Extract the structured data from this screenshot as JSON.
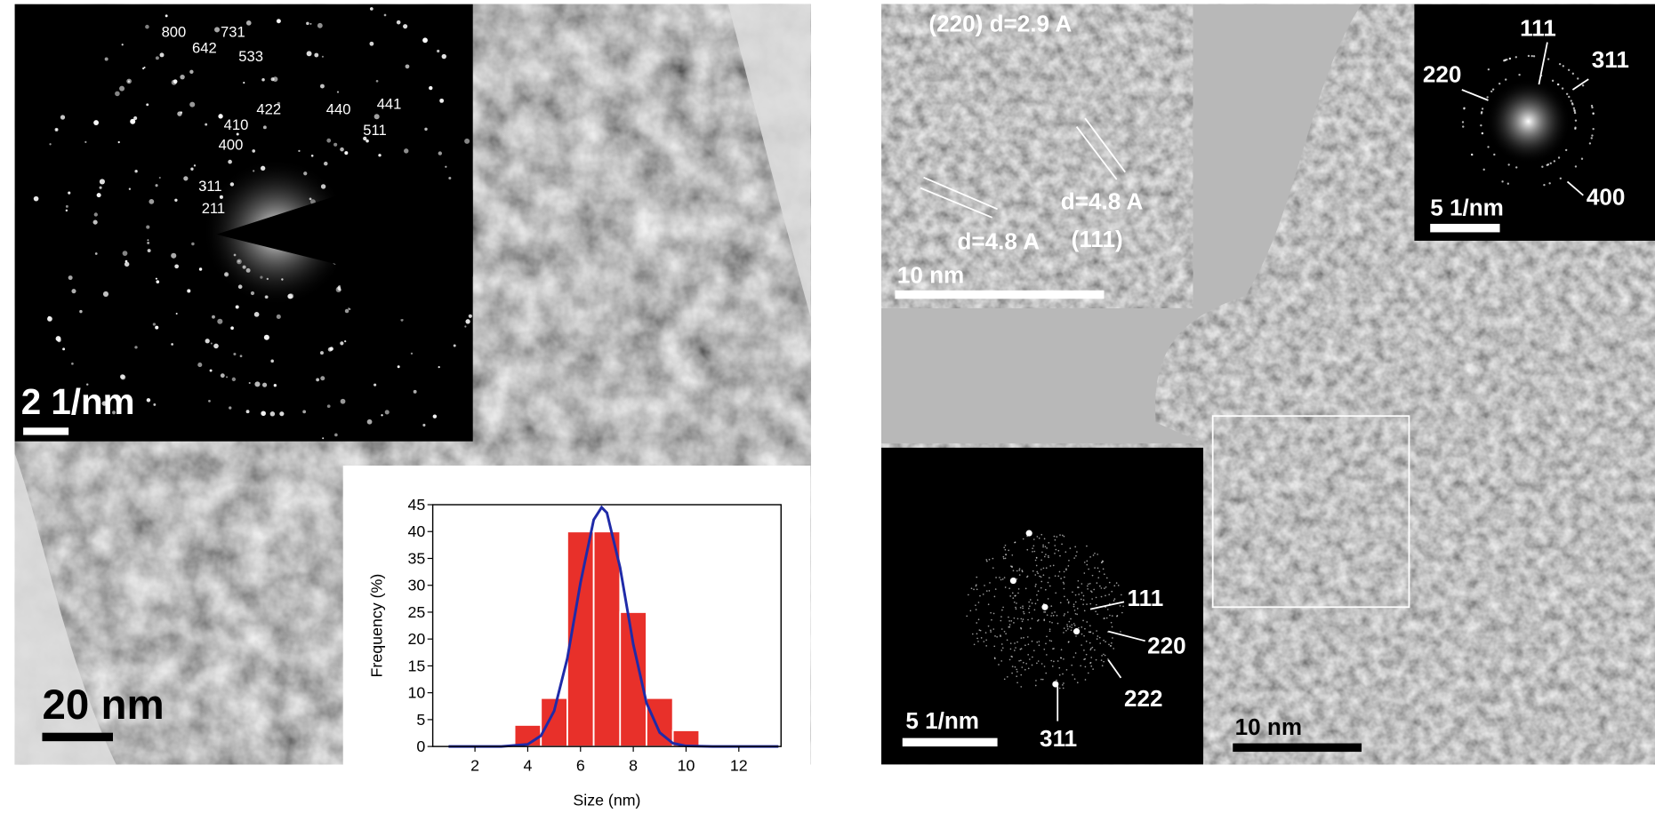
{
  "left_image": {
    "diffraction_indices": [
      "800",
      "731",
      "642",
      "533",
      "422",
      "440",
      "441",
      "410",
      "400",
      "511",
      "311",
      "211"
    ],
    "diffraction_scale_bar": "2 1/nm",
    "scale_bar": "20 nm"
  },
  "chart_data": {
    "type": "histogram",
    "bins": [
      3.5,
      4.5,
      5.5,
      6.5,
      7.5,
      8.5,
      9.5,
      10.5
    ],
    "values": [
      4,
      9,
      40,
      40,
      25,
      9,
      3
    ],
    "color": "#e8302a",
    "fit": {
      "x": [
        1,
        2,
        3,
        4,
        4.5,
        5,
        5.5,
        6,
        6.5,
        6.8,
        7,
        7.5,
        8,
        8.5,
        9,
        9.5,
        10,
        11,
        12,
        13.5
      ],
      "values": [
        0,
        0,
        0,
        0.4,
        2,
        6.6,
        16.4,
        30.5,
        42.2,
        44.5,
        43.5,
        33.3,
        19,
        8.1,
        2.6,
        0.6,
        0.1,
        0,
        0,
        0
      ],
      "color": "#1f2aa8"
    },
    "xlabel": "Size (nm)",
    "ylabel": "Frequency (%)",
    "xlim": [
      0.4,
      13.6
    ],
    "ylim": [
      0,
      45
    ],
    "xticks": [
      2,
      4,
      6,
      8,
      10,
      12
    ],
    "yticks": [
      0,
      5,
      10,
      15,
      20,
      25,
      30,
      35,
      40,
      45
    ]
  },
  "right_image": {
    "hrtem_inset": {
      "labels": [
        "(220) d=2.9 A",
        "d=4.8 A",
        "d=4.8 A",
        "(111)"
      ],
      "scale_bar": "10 nm"
    },
    "fft_inset_top": {
      "labels": [
        "111",
        "220",
        "311",
        "400"
      ],
      "scale_bar": "5 1/nm"
    },
    "fft_inset_bottom": {
      "labels": [
        "111",
        "220",
        "222",
        "311"
      ],
      "scale_bar": "5 1/nm"
    },
    "scale_bar": "10 nm"
  }
}
